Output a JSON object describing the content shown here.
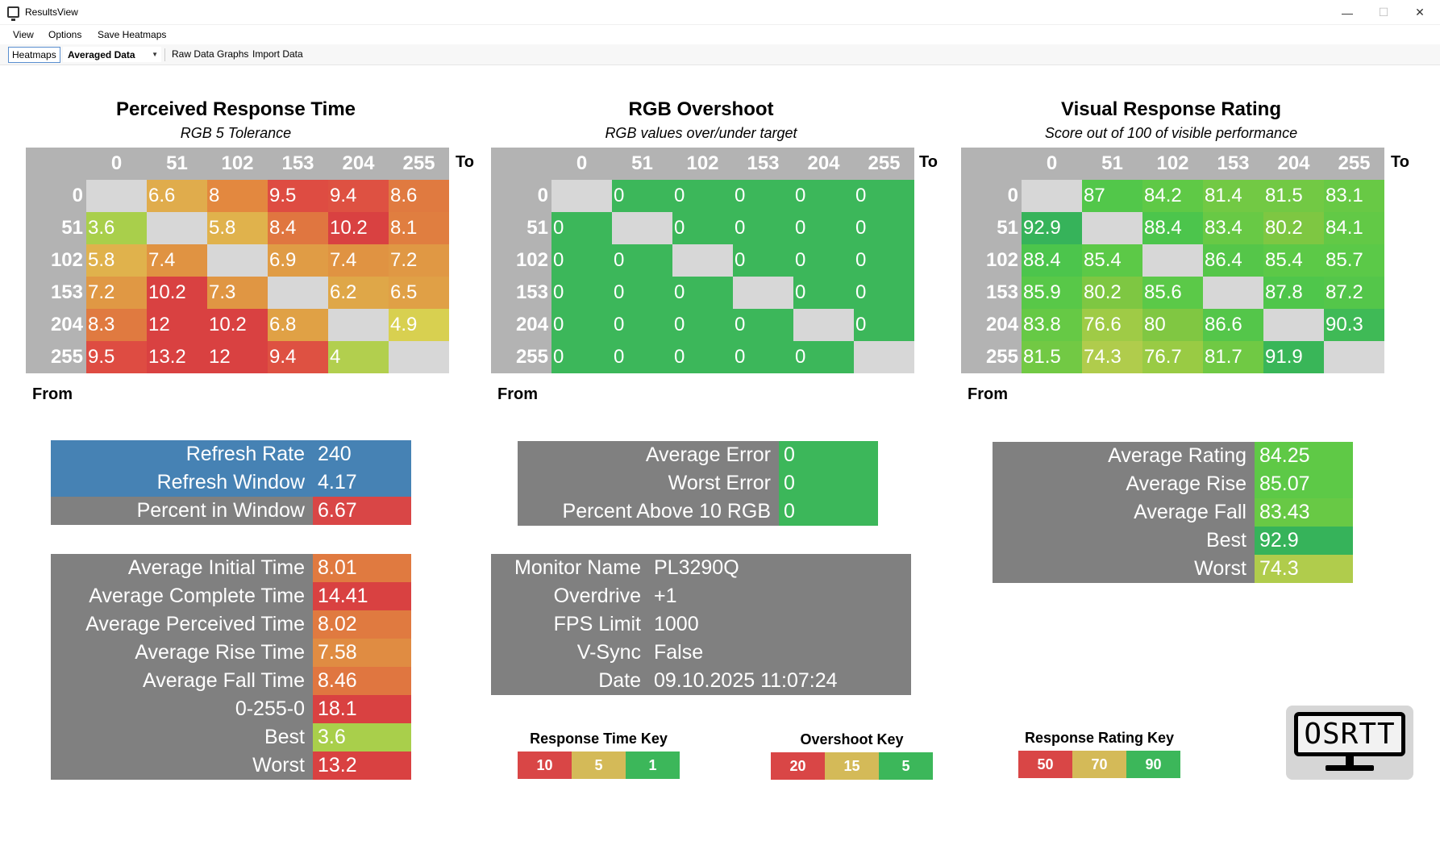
{
  "window": {
    "title": "ResultsView"
  },
  "menu": [
    "View",
    "Options",
    "Save Heatmaps"
  ],
  "toolbar": {
    "heatmaps": "Heatmaps",
    "combo": "Averaged Data",
    "raw": "Raw Data Graphs",
    "import": "Import Data"
  },
  "labels": {
    "to": "To",
    "from": "From"
  },
  "axis": [
    "0",
    "51",
    "102",
    "153",
    "204",
    "255"
  ],
  "colors": {
    "red": "#d94646",
    "orange": "#e08a42",
    "yellow": "#d4ba58",
    "green": "#3cb75a",
    "blue": "#4682b4",
    "grey": "#808080"
  },
  "heatmaps": [
    {
      "title": "Perceived Response Time",
      "subtitle": "RGB 5 Tolerance",
      "values": [
        [
          "",
          "6.6",
          "8",
          "9.5",
          "9.4",
          "8.6"
        ],
        [
          "3.6",
          "",
          "5.8",
          "8.4",
          "10.2",
          "8.1"
        ],
        [
          "5.8",
          "7.4",
          "",
          "6.9",
          "7.4",
          "7.2"
        ],
        [
          "7.2",
          "10.2",
          "7.3",
          "",
          "6.2",
          "6.5"
        ],
        [
          "8.3",
          "12",
          "10.2",
          "6.8",
          "",
          "4.9"
        ],
        [
          "9.5",
          "13.2",
          "12",
          "9.4",
          "4",
          ""
        ]
      ],
      "colors": [
        [
          "",
          "#e0ac4c",
          "#e3883f",
          "#de4c42",
          "#de5142",
          "#e07a40"
        ],
        [
          "#a9cf4b",
          "",
          "#e0b24c",
          "#e07640",
          "#d94141",
          "#e07e40"
        ],
        [
          "#e0b24c",
          "#e09342",
          "",
          "#e09c45",
          "#e09342",
          "#e09844"
        ],
        [
          "#e09844",
          "#d94141",
          "#e09643",
          "",
          "#dfa748",
          "#e0a046"
        ],
        [
          "#e07a40",
          "#d94141",
          "#d94141",
          "#e0a145",
          "",
          "#d8d050"
        ],
        [
          "#de4c42",
          "#d94141",
          "#d94141",
          "#de5142",
          "#b2cf4e",
          ""
        ]
      ]
    },
    {
      "title": "RGB Overshoot",
      "subtitle": "RGB values over/under target",
      "values": [
        [
          "",
          "0",
          "0",
          "0",
          "0",
          "0"
        ],
        [
          "0",
          "",
          "0",
          "0",
          "0",
          "0"
        ],
        [
          "0",
          "0",
          "",
          "0",
          "0",
          "0"
        ],
        [
          "0",
          "0",
          "0",
          "",
          "0",
          "0"
        ],
        [
          "0",
          "0",
          "0",
          "0",
          "",
          "0"
        ],
        [
          "0",
          "0",
          "0",
          "0",
          "0",
          ""
        ]
      ],
      "colors": [
        [
          "",
          "#3cb75a",
          "#3cb75a",
          "#3cb75a",
          "#3cb75a",
          "#3cb75a"
        ],
        [
          "#3cb75a",
          "",
          "#3cb75a",
          "#3cb75a",
          "#3cb75a",
          "#3cb75a"
        ],
        [
          "#3cb75a",
          "#3cb75a",
          "",
          "#3cb75a",
          "#3cb75a",
          "#3cb75a"
        ],
        [
          "#3cb75a",
          "#3cb75a",
          "#3cb75a",
          "",
          "#3cb75a",
          "#3cb75a"
        ],
        [
          "#3cb75a",
          "#3cb75a",
          "#3cb75a",
          "#3cb75a",
          "",
          "#3cb75a"
        ],
        [
          "#3cb75a",
          "#3cb75a",
          "#3cb75a",
          "#3cb75a",
          "#3cb75a",
          ""
        ]
      ]
    },
    {
      "title": "Visual Response Rating",
      "subtitle": "Score out of 100 of visible performance",
      "values": [
        [
          "",
          "87",
          "84.2",
          "81.4",
          "81.5",
          "83.1"
        ],
        [
          "92.9",
          "",
          "88.4",
          "83.4",
          "80.2",
          "84.1"
        ],
        [
          "88.4",
          "85.4",
          "",
          "86.4",
          "85.4",
          "85.7"
        ],
        [
          "85.9",
          "80.2",
          "85.6",
          "",
          "87.8",
          "87.2"
        ],
        [
          "83.8",
          "76.6",
          "80",
          "86.6",
          "",
          "90.3"
        ],
        [
          "81.5",
          "74.3",
          "76.7",
          "81.7",
          "91.9",
          ""
        ]
      ],
      "colors": [
        [
          "",
          "#52c74a",
          "#5fc946",
          "#72c944",
          "#72c944",
          "#68c945"
        ],
        [
          "#36b35a",
          "",
          "#4cc54c",
          "#68c945",
          "#7ec742",
          "#62c946"
        ],
        [
          "#4cc54c",
          "#5cc947",
          "",
          "#55c649",
          "#5cc947",
          "#5bc948"
        ],
        [
          "#58c848",
          "#7ec742",
          "#5bc948",
          "",
          "#4fc64b",
          "#54c64a"
        ],
        [
          "#66c945",
          "#9fcb46",
          "#80c742",
          "#54c64a",
          "",
          "#3fba56"
        ],
        [
          "#72c944",
          "#b0cc4c",
          "#99cb44",
          "#70c944",
          "#39b658",
          ""
        ]
      ]
    }
  ],
  "refresh_stats": [
    {
      "label": "Refresh Rate",
      "value": "240",
      "color": "#4682b4",
      "label_color": "#4682b4"
    },
    {
      "label": "Refresh Window",
      "value": "4.17",
      "color": "#4682b4",
      "label_color": "#4682b4"
    },
    {
      "label": "Percent in Window",
      "value": "6.67",
      "color": "#d94646",
      "label_color": "#808080"
    }
  ],
  "time_stats": [
    {
      "label": "Average Initial Time",
      "value": "8.01",
      "color": "#e07a40"
    },
    {
      "label": "Average Complete Time",
      "value": "14.41",
      "color": "#d94141"
    },
    {
      "label": "Average Perceived Time",
      "value": "8.02",
      "color": "#e07a40"
    },
    {
      "label": "Average Rise Time",
      "value": "7.58",
      "color": "#e08c42"
    },
    {
      "label": "Average Fall Time",
      "value": "8.46",
      "color": "#e07640"
    },
    {
      "label": "0-255-0",
      "value": "18.1",
      "color": "#d94141"
    },
    {
      "label": "Best",
      "value": "3.6",
      "color": "#a9cf4b"
    },
    {
      "label": "Worst",
      "value": "13.2",
      "color": "#d94141"
    }
  ],
  "error_stats": [
    {
      "label": "Average Error",
      "value": "0",
      "color": "#3cb75a"
    },
    {
      "label": "Worst Error",
      "value": "0",
      "color": "#3cb75a"
    },
    {
      "label": "Percent Above 10 RGB",
      "value": "0",
      "color": "#3cb75a"
    }
  ],
  "monitor_info": [
    {
      "label": "Monitor Name",
      "value": "PL3290Q"
    },
    {
      "label": "Overdrive",
      "value": "+1"
    },
    {
      "label": "FPS Limit",
      "value": "1000"
    },
    {
      "label": "V-Sync",
      "value": "False"
    },
    {
      "label": "Date",
      "value": "09.10.2025 11:07:24"
    }
  ],
  "rating_stats": [
    {
      "label": "Average Rating",
      "value": "84.25",
      "color": "#5fc946"
    },
    {
      "label": "Average Rise",
      "value": "85.07",
      "color": "#5dc947"
    },
    {
      "label": "Average Fall",
      "value": "83.43",
      "color": "#68c945"
    },
    {
      "label": "Best",
      "value": "92.9",
      "color": "#36b35a"
    },
    {
      "label": "Worst",
      "value": "74.3",
      "color": "#b0cc4c"
    }
  ],
  "keys": [
    {
      "title": "Response Time Key",
      "items": [
        {
          "label": "10",
          "color": "#d94646"
        },
        {
          "label": "5",
          "color": "#d4ba58"
        },
        {
          "label": "1",
          "color": "#3cb75a"
        }
      ]
    },
    {
      "title": "Overshoot Key",
      "items": [
        {
          "label": "20",
          "color": "#d94646"
        },
        {
          "label": "15",
          "color": "#d4ba58"
        },
        {
          "label": "5",
          "color": "#3cb75a"
        }
      ]
    },
    {
      "title": "Response Rating Key",
      "items": [
        {
          "label": "50",
          "color": "#d94646"
        },
        {
          "label": "70",
          "color": "#d4ba58"
        },
        {
          "label": "90",
          "color": "#3cb75a"
        }
      ]
    }
  ],
  "logo": {
    "text": "OSRTT"
  }
}
